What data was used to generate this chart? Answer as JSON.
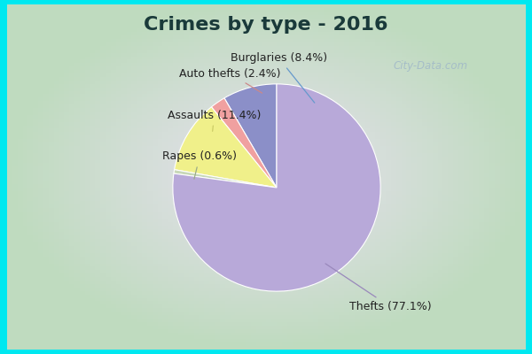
{
  "title": "Crimes by type - 2016",
  "plot_order_labels": [
    "Burglaries",
    "Auto thefts",
    "Assaults",
    "Rapes",
    "Thefts"
  ],
  "plot_order_values": [
    8.4,
    2.4,
    11.4,
    0.6,
    77.1
  ],
  "plot_order_colors": [
    "#8b8fc8",
    "#f0a0a0",
    "#f0f08a",
    "#c8d8b8",
    "#b8a9d9"
  ],
  "plot_order_full": [
    "Burglaries (8.4%)",
    "Auto thefts (2.4%)",
    "Assaults (11.4%)",
    "Rapes (0.6%)",
    "Thefts (77.1%)"
  ],
  "background_cyan": "#00e8f0",
  "background_inner": "#d8ecd8",
  "title_fontsize": 16,
  "label_fontsize": 9,
  "startangle": 90
}
